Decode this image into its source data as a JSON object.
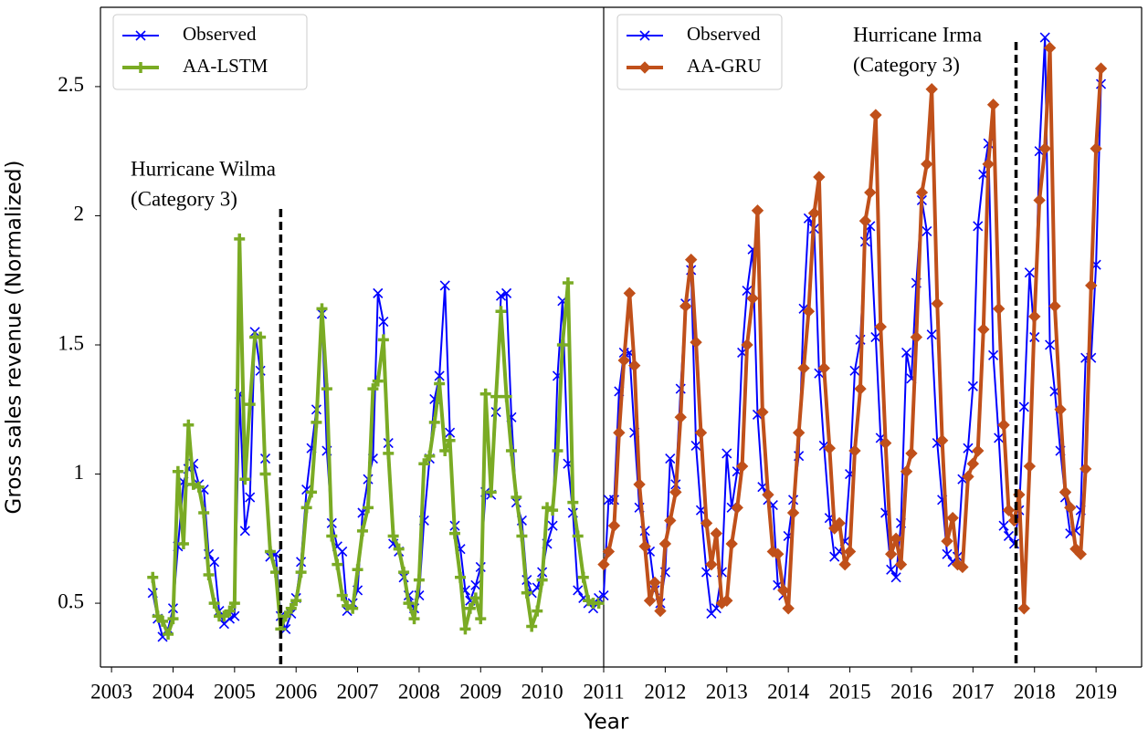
{
  "chart_data": [
    {
      "type": "line",
      "ylabel": "Gross sales revenue (Normalized)",
      "xlabel": "Year",
      "xlim": [
        2002.82,
        2011
      ],
      "xticks": [
        2003,
        2004,
        2005,
        2006,
        2007,
        2008,
        2009,
        2010,
        2011
      ],
      "ylim": [
        0.253,
        2.807
      ],
      "yticks": [
        0.5,
        1,
        1.5,
        2,
        2.5
      ],
      "event_x": 2005.75,
      "annotation": [
        "Hurricane Wilma",
        "(Category 3)"
      ],
      "series": [
        {
          "name": "Observed",
          "color": "#0000ff",
          "marker": "x",
          "x": [
            2003.67,
            2003.75,
            2003.83,
            2003.92,
            2004,
            2004.08,
            2004.17,
            2004.25,
            2004.33,
            2004.42,
            2004.5,
            2004.58,
            2004.67,
            2004.75,
            2004.83,
            2004.92,
            2005,
            2005.08,
            2005.17,
            2005.25,
            2005.33,
            2005.42,
            2005.5,
            2005.58,
            2005.67,
            2005.75,
            2005.83,
            2005.92,
            2006,
            2006.08,
            2006.17,
            2006.25,
            2006.33,
            2006.42,
            2006.5,
            2006.58,
            2006.67,
            2006.75,
            2006.83,
            2006.92,
            2007,
            2007.08,
            2007.17,
            2007.25,
            2007.33,
            2007.42,
            2007.5,
            2007.58,
            2007.67,
            2007.75,
            2007.83,
            2007.92,
            2008,
            2008.08,
            2008.17,
            2008.25,
            2008.33,
            2008.42,
            2008.5,
            2008.58,
            2008.67,
            2008.75,
            2008.83,
            2008.92,
            2009,
            2009.08,
            2009.17,
            2009.25,
            2009.33,
            2009.42,
            2009.5,
            2009.58,
            2009.67,
            2009.75,
            2009.83,
            2009.92,
            2010,
            2010.08,
            2010.17,
            2010.25,
            2010.33,
            2010.42,
            2010.5,
            2010.58,
            2010.67,
            2010.75,
            2010.83,
            2010.92
          ],
          "values": [
            0.54,
            0.44,
            0.37,
            0.4,
            0.48,
            0.72,
            0.97,
            1.02,
            1.04,
            0.96,
            0.94,
            0.69,
            0.66,
            0.47,
            0.42,
            0.44,
            0.45,
            1.31,
            0.78,
            0.91,
            1.55,
            1.4,
            1.06,
            0.68,
            0.69,
            0.45,
            0.4,
            0.46,
            0.52,
            0.66,
            0.94,
            1.1,
            1.25,
            1.62,
            1.09,
            0.81,
            0.72,
            0.7,
            0.47,
            0.5,
            0.55,
            0.85,
            0.98,
            1.06,
            1.7,
            1.59,
            1.12,
            0.73,
            0.7,
            0.6,
            0.53,
            0.48,
            0.53,
            0.82,
            1.06,
            1.29,
            1.38,
            1.73,
            1.16,
            0.8,
            0.71,
            0.55,
            0.51,
            0.57,
            0.64,
            0.93,
            0.92,
            1.24,
            1.69,
            1.7,
            1.22,
            0.89,
            0.82,
            0.59,
            0.54,
            0.56,
            0.62,
            0.73,
            0.8,
            1.38,
            1.67,
            1.04,
            0.85,
            0.55,
            0.52,
            0.5,
            0.48,
            0.52
          ]
        },
        {
          "name": "AA-LSTM",
          "color": "#7aab24",
          "marker": "plus",
          "x": [
            2003.67,
            2003.75,
            2003.83,
            2003.92,
            2004,
            2004.08,
            2004.17,
            2004.25,
            2004.33,
            2004.42,
            2004.5,
            2004.58,
            2004.67,
            2004.75,
            2004.83,
            2004.92,
            2005,
            2005.08,
            2005.17,
            2005.25,
            2005.33,
            2005.42,
            2005.5,
            2005.58,
            2005.67,
            2005.75,
            2005.83,
            2005.92,
            2006,
            2006.08,
            2006.17,
            2006.25,
            2006.33,
            2006.42,
            2006.5,
            2006.58,
            2006.67,
            2006.75,
            2006.83,
            2006.92,
            2007,
            2007.08,
            2007.17,
            2007.25,
            2007.33,
            2007.42,
            2007.5,
            2007.58,
            2007.67,
            2007.75,
            2007.83,
            2007.92,
            2008,
            2008.08,
            2008.17,
            2008.25,
            2008.33,
            2008.42,
            2008.5,
            2008.58,
            2008.67,
            2008.75,
            2008.83,
            2008.92,
            2009,
            2009.08,
            2009.17,
            2009.25,
            2009.33,
            2009.42,
            2009.5,
            2009.58,
            2009.67,
            2009.75,
            2009.83,
            2009.92,
            2010,
            2010.08,
            2010.17,
            2010.25,
            2010.33,
            2010.42,
            2010.5,
            2010.58,
            2010.67,
            2010.75,
            2010.83,
            2010.92
          ],
          "values": [
            0.6,
            0.45,
            0.43,
            0.38,
            0.44,
            1.01,
            0.73,
            1.19,
            0.96,
            0.95,
            0.85,
            0.61,
            0.5,
            0.45,
            0.45,
            0.47,
            0.5,
            1.91,
            0.98,
            1.27,
            1.53,
            1.53,
            1.0,
            0.7,
            0.62,
            0.4,
            0.45,
            0.48,
            0.51,
            0.62,
            0.87,
            0.93,
            1.2,
            1.64,
            1.33,
            0.76,
            0.65,
            0.53,
            0.49,
            0.48,
            0.63,
            0.78,
            0.87,
            1.33,
            1.36,
            1.52,
            1.08,
            0.76,
            0.71,
            0.62,
            0.5,
            0.44,
            0.59,
            1.04,
            1.07,
            1.2,
            1.35,
            1.09,
            1.13,
            0.77,
            0.6,
            0.4,
            0.48,
            0.52,
            0.44,
            1.31,
            0.93,
            1.3,
            1.63,
            1.3,
            1.09,
            0.91,
            0.76,
            0.54,
            0.41,
            0.47,
            0.59,
            0.87,
            0.86,
            1.09,
            1.5,
            1.74,
            0.89,
            0.76,
            0.6,
            0.51,
            0.5,
            0.5
          ]
        }
      ]
    },
    {
      "type": "line",
      "xlim": [
        2011,
        2019.74
      ],
      "xticks": [
        2012,
        2013,
        2014,
        2015,
        2016,
        2017,
        2018,
        2019
      ],
      "ylim": [
        0.253,
        2.807
      ],
      "event_x": 2017.7,
      "annotation": [
        "Hurricane Irma",
        "(Category 3)"
      ],
      "series": [
        {
          "name": "Observed",
          "color": "#0000ff",
          "marker": "x",
          "x": [
            2011,
            2011.08,
            2011.17,
            2011.25,
            2011.33,
            2011.42,
            2011.5,
            2011.58,
            2011.67,
            2011.75,
            2011.83,
            2011.92,
            2012,
            2012.08,
            2012.17,
            2012.25,
            2012.33,
            2012.42,
            2012.5,
            2012.58,
            2012.67,
            2012.75,
            2012.83,
            2012.92,
            2013,
            2013.08,
            2013.17,
            2013.25,
            2013.33,
            2013.42,
            2013.5,
            2013.58,
            2013.67,
            2013.75,
            2013.83,
            2013.92,
            2014,
            2014.08,
            2014.17,
            2014.25,
            2014.33,
            2014.42,
            2014.5,
            2014.58,
            2014.67,
            2014.75,
            2014.83,
            2014.92,
            2015,
            2015.08,
            2015.17,
            2015.25,
            2015.33,
            2015.42,
            2015.5,
            2015.58,
            2015.67,
            2015.75,
            2015.83,
            2015.92,
            2016,
            2016.08,
            2016.17,
            2016.25,
            2016.33,
            2016.42,
            2016.5,
            2016.58,
            2016.67,
            2016.75,
            2016.83,
            2016.92,
            2017,
            2017.08,
            2017.17,
            2017.25,
            2017.33,
            2017.42,
            2017.5,
            2017.58,
            2017.67,
            2017.75,
            2017.83,
            2017.92,
            2018,
            2018.08,
            2018.17,
            2018.25,
            2018.33,
            2018.42,
            2018.5,
            2018.58,
            2018.67,
            2018.75,
            2018.83,
            2018.92,
            2019,
            2019.08
          ],
          "values": [
            0.53,
            0.9,
            0.9,
            1.32,
            1.47,
            1.47,
            1.16,
            0.87,
            0.78,
            0.7,
            0.55,
            0.5,
            0.62,
            1.06,
            0.96,
            1.33,
            1.66,
            1.79,
            1.11,
            0.86,
            0.62,
            0.46,
            0.48,
            0.62,
            1.08,
            0.87,
            1.01,
            1.47,
            1.71,
            1.87,
            1.23,
            0.95,
            0.9,
            0.88,
            0.57,
            0.53,
            0.76,
            0.9,
            1.07,
            1.64,
            1.99,
            1.95,
            1.39,
            1.11,
            0.83,
            0.68,
            0.7,
            0.74,
            1.0,
            1.4,
            1.52,
            1.9,
            1.96,
            1.53,
            1.14,
            0.85,
            0.63,
            0.6,
            0.81,
            1.47,
            1.37,
            1.74,
            2.06,
            1.94,
            1.54,
            1.12,
            0.9,
            0.69,
            0.66,
            0.68,
            0.98,
            1.1,
            1.34,
            1.96,
            2.16,
            2.28,
            1.46,
            1.14,
            0.8,
            0.76,
            0.73,
            0.86,
            1.26,
            1.78,
            1.53,
            2.25,
            2.69,
            1.5,
            1.32,
            1.09,
            0.91,
            0.77,
            0.78,
            0.86,
            1.45,
            1.45,
            1.81,
            2.51
          ]
        },
        {
          "name": "AA-GRU",
          "color": "#c0501a",
          "marker": "diamond",
          "x": [
            2011,
            2011.08,
            2011.17,
            2011.25,
            2011.33,
            2011.42,
            2011.5,
            2011.58,
            2011.67,
            2011.75,
            2011.83,
            2011.92,
            2012,
            2012.08,
            2012.17,
            2012.25,
            2012.33,
            2012.42,
            2012.5,
            2012.58,
            2012.67,
            2012.75,
            2012.83,
            2012.92,
            2013,
            2013.08,
            2013.17,
            2013.25,
            2013.33,
            2013.42,
            2013.5,
            2013.58,
            2013.67,
            2013.75,
            2013.83,
            2013.92,
            2014,
            2014.08,
            2014.17,
            2014.25,
            2014.33,
            2014.42,
            2014.5,
            2014.58,
            2014.67,
            2014.75,
            2014.83,
            2014.92,
            2015,
            2015.08,
            2015.17,
            2015.25,
            2015.33,
            2015.42,
            2015.5,
            2015.58,
            2015.67,
            2015.75,
            2015.83,
            2015.92,
            2016,
            2016.08,
            2016.17,
            2016.25,
            2016.33,
            2016.42,
            2016.5,
            2016.58,
            2016.67,
            2016.75,
            2016.83,
            2016.92,
            2017,
            2017.08,
            2017.17,
            2017.25,
            2017.33,
            2017.42,
            2017.5,
            2017.58,
            2017.67,
            2017.75,
            2017.83,
            2017.92,
            2018,
            2018.08,
            2018.17,
            2018.25,
            2018.33,
            2018.42,
            2018.5,
            2018.58,
            2018.67,
            2018.75,
            2018.83,
            2018.92,
            2019,
            2019.08
          ],
          "values": [
            0.65,
            0.7,
            0.8,
            1.16,
            1.44,
            1.7,
            1.42,
            0.96,
            0.72,
            0.51,
            0.58,
            0.47,
            0.73,
            0.82,
            0.93,
            1.22,
            1.65,
            1.83,
            1.51,
            1.16,
            0.81,
            0.65,
            0.77,
            0.5,
            0.51,
            0.73,
            0.87,
            1.03,
            1.5,
            1.68,
            2.02,
            1.24,
            0.92,
            0.7,
            0.69,
            0.55,
            0.48,
            0.85,
            1.16,
            1.41,
            1.63,
            2.01,
            2.15,
            1.41,
            1.1,
            0.79,
            0.81,
            0.65,
            0.7,
            1.09,
            1.33,
            1.98,
            2.09,
            2.39,
            1.57,
            1.12,
            0.69,
            0.75,
            0.65,
            1.01,
            1.08,
            1.53,
            2.09,
            2.2,
            2.49,
            1.66,
            1.13,
            0.74,
            0.83,
            0.65,
            0.64,
            0.99,
            1.04,
            1.09,
            1.56,
            2.2,
            2.43,
            1.64,
            1.19,
            0.86,
            0.82,
            0.92,
            0.48,
            1.03,
            1.61,
            2.06,
            2.26,
            2.65,
            1.65,
            1.25,
            0.93,
            0.87,
            0.71,
            0.69,
            1.02,
            1.73,
            2.26,
            2.57
          ]
        }
      ]
    }
  ]
}
